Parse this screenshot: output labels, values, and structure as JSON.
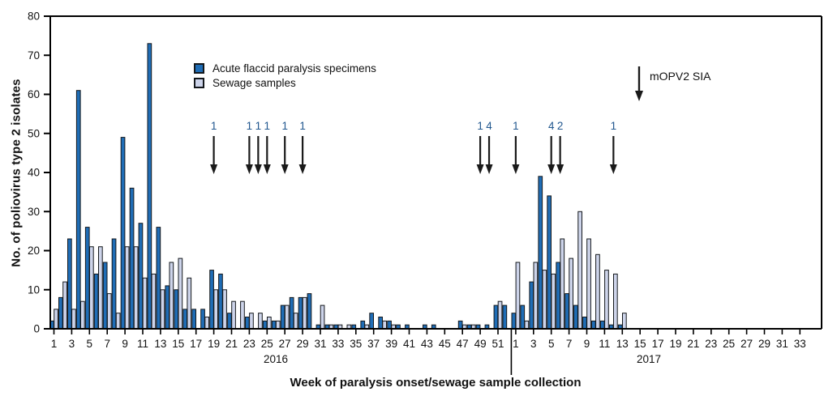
{
  "chart_data": {
    "type": "bar",
    "ylabel": "No. of poliovirus type 2 isolates",
    "xlabel": "Week of paralysis onset/sewage sample collection",
    "ylim": [
      0,
      80
    ],
    "y_ticks": [
      0,
      10,
      20,
      30,
      40,
      50,
      60,
      70,
      80
    ],
    "grid": false,
    "legend_position": "upper-left-inside",
    "series": [
      {
        "name": "Acute flaccid paralysis specimens",
        "key": "afp"
      },
      {
        "name": "Sewage samples",
        "key": "sewage"
      }
    ],
    "years": [
      {
        "year": "2016",
        "weeks": 52,
        "afp": [
          2,
          8,
          23,
          61,
          26,
          14,
          17,
          23,
          49,
          36,
          27,
          73,
          26,
          11,
          10,
          5,
          5,
          5,
          15,
          14,
          4,
          0,
          3,
          0,
          2,
          2,
          6,
          8,
          8,
          9,
          1,
          1,
          1,
          0,
          1,
          2,
          4,
          3,
          2,
          1,
          1,
          0,
          1,
          1,
          0,
          0,
          2,
          1,
          1,
          1,
          6,
          6
        ],
        "sewage": [
          5,
          12,
          5,
          7,
          21,
          21,
          9,
          4,
          21,
          21,
          13,
          14,
          10,
          17,
          18,
          13,
          0,
          3,
          10,
          10,
          7,
          7,
          4,
          4,
          3,
          2,
          6,
          4,
          8,
          0,
          6,
          1,
          1,
          1,
          0,
          1,
          0,
          2,
          1,
          0,
          0,
          0,
          0,
          0,
          0,
          0,
          1,
          1,
          0,
          0,
          7,
          0
        ]
      },
      {
        "year": "2017",
        "weeks": 34,
        "afp": [
          4,
          6,
          12,
          39,
          34,
          17,
          9,
          6,
          3,
          2,
          2,
          1,
          1,
          0,
          0,
          0,
          0,
          0,
          0,
          0,
          0,
          0,
          0,
          0,
          0,
          0,
          0,
          0,
          0,
          0,
          0,
          0,
          0,
          0
        ],
        "sewage": [
          17,
          2,
          17,
          15,
          14,
          23,
          18,
          30,
          23,
          19,
          15,
          14,
          4,
          0,
          0,
          0,
          0,
          0,
          0,
          0,
          0,
          0,
          0,
          0,
          0,
          0,
          0,
          0,
          0,
          0,
          0,
          0,
          0,
          0
        ]
      }
    ],
    "x_tick_label_step": "odd weeks (1, 3, 5, ...)",
    "sia_arrows": [
      {
        "year": "2016",
        "week": 19,
        "count": "1"
      },
      {
        "year": "2016",
        "week": 23,
        "count": "1"
      },
      {
        "year": "2016",
        "week": 24,
        "count": "1"
      },
      {
        "year": "2016",
        "week": 25,
        "count": "1"
      },
      {
        "year": "2016",
        "week": 27,
        "count": "1"
      },
      {
        "year": "2016",
        "week": 29,
        "count": "1"
      },
      {
        "year": "2016",
        "week": 49,
        "count": "1"
      },
      {
        "year": "2016",
        "week": 50,
        "count": "4"
      },
      {
        "year": "2017",
        "week": 1,
        "count": "1"
      },
      {
        "year": "2017",
        "week": 5,
        "count": "4"
      },
      {
        "year": "2017",
        "week": 6,
        "count": "2"
      },
      {
        "year": "2017",
        "week": 12,
        "count": "1"
      }
    ],
    "annotation": {
      "label": "mOPV2 SIA"
    },
    "colors": {
      "afp_fill": "#1f6db6",
      "sewage_fill": "#cdd4ea",
      "bar_stroke": "#14181c",
      "axis": "#000000",
      "arrow": "#1a1a1a",
      "arrow_count_text": "#21578f"
    }
  }
}
